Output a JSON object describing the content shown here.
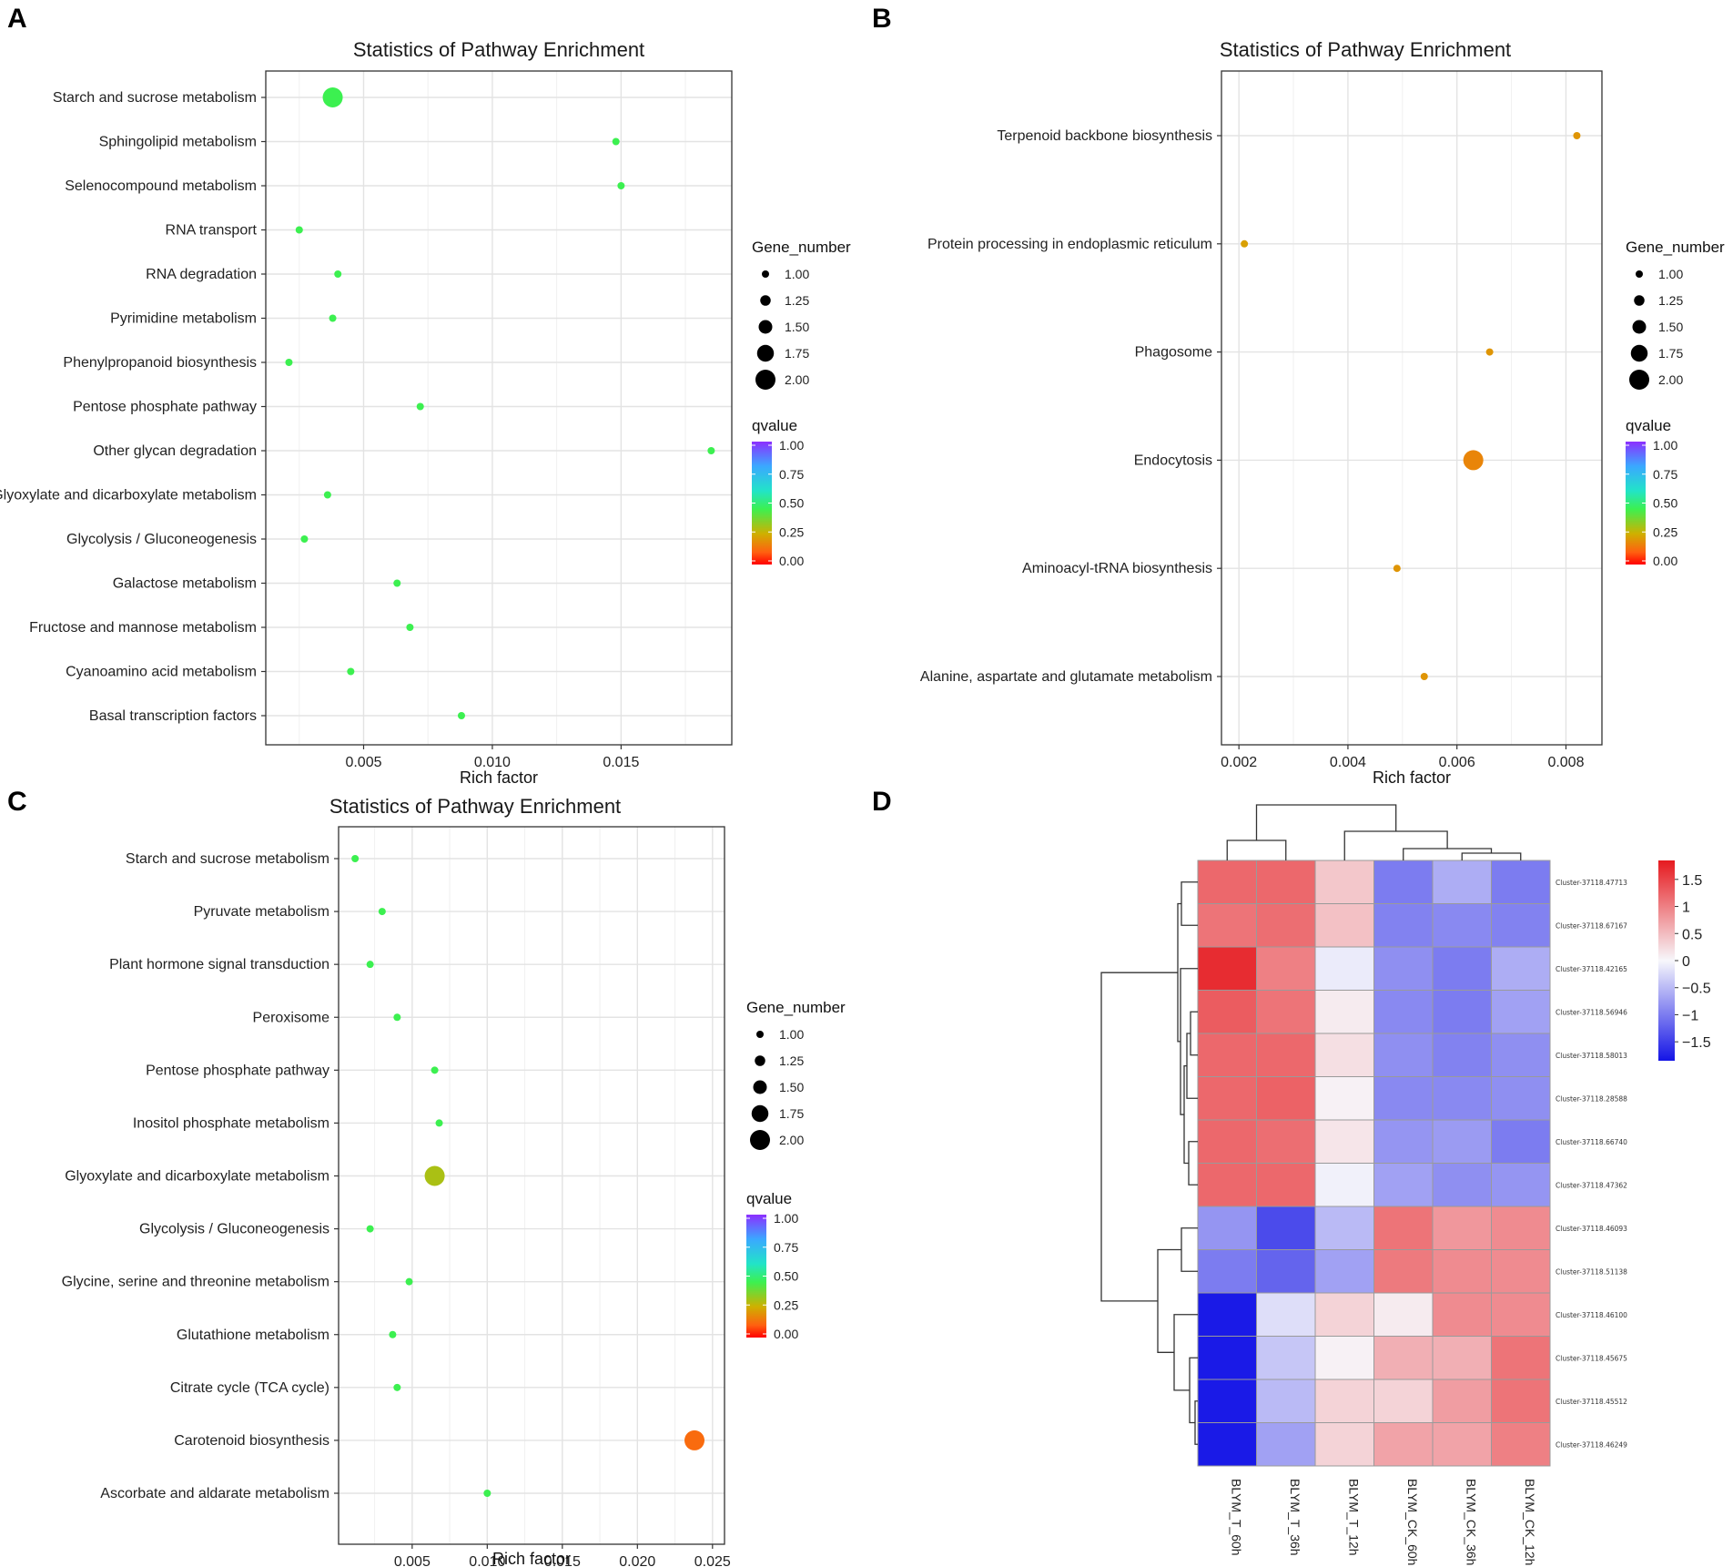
{
  "chart_data": [
    {
      "type": "scatter",
      "panel_label": "A",
      "title": "Statistics of Pathway Enrichment",
      "xlabel": "Rich factor",
      "ylabel": "",
      "xlim": [
        0.0012,
        0.0193
      ],
      "xticks": [
        0.005,
        0.01,
        0.015
      ],
      "xtick_labels": [
        "0.005",
        "0.010",
        "0.015"
      ],
      "grid": true,
      "categories": [
        "Starch and sucrose metabolism",
        "Sphingolipid metabolism",
        "Selenocompound metabolism",
        "RNA transport",
        "RNA degradation",
        "Pyrimidine metabolism",
        "Phenylpropanoid biosynthesis",
        "Pentose phosphate pathway",
        "Other glycan degradation",
        "Glyoxylate and dicarboxylate metabolism",
        "Glycolysis / Gluconeogenesis",
        "Galactose metabolism",
        "Fructose and mannose metabolism",
        "Cyanoamino acid metabolism",
        "Basal transcription factors"
      ],
      "x": [
        0.0038,
        0.0148,
        0.015,
        0.0025,
        0.004,
        0.0038,
        0.0021,
        0.0072,
        0.0185,
        0.0036,
        0.0027,
        0.0063,
        0.0068,
        0.0045,
        0.0088
      ],
      "gene_number": [
        2,
        1,
        1,
        1,
        1,
        1,
        1,
        1,
        1,
        1,
        1,
        1,
        1,
        1,
        1
      ],
      "qvalue": [
        0.45,
        0.45,
        0.45,
        0.45,
        0.45,
        0.45,
        0.45,
        0.45,
        0.45,
        0.45,
        0.45,
        0.45,
        0.45,
        0.45,
        0.45
      ],
      "size_legend": {
        "title": "Gene_number",
        "values": [
          1.0,
          1.25,
          1.5,
          1.75,
          2.0
        ],
        "labels": [
          "1.00",
          "1.25",
          "1.50",
          "1.75",
          "2.00"
        ]
      },
      "color_legend": {
        "title": "qvalue",
        "labels": [
          "1.00",
          "0.75",
          "0.50",
          "0.25",
          "0.00"
        ]
      }
    },
    {
      "type": "scatter",
      "panel_label": "B",
      "title": "Statistics of Pathway Enrichment",
      "xlabel": "Rich factor",
      "ylabel": "",
      "xlim": [
        0.00168,
        0.00866
      ],
      "xticks": [
        0.002,
        0.004,
        0.006,
        0.008
      ],
      "xtick_labels": [
        "0.002",
        "0.004",
        "0.006",
        "0.008"
      ],
      "grid": true,
      "categories": [
        "Terpenoid backbone biosynthesis",
        "Protein processing in endoplasmic reticulum",
        "Phagosome",
        "Endocytosis",
        "Aminoacyl-tRNA biosynthesis",
        "Alanine, aspartate and glutamate metabolism"
      ],
      "x": [
        0.0082,
        0.0021,
        0.0066,
        0.0063,
        0.0049,
        0.0054
      ],
      "gene_number": [
        1,
        1,
        1,
        2,
        1,
        1
      ],
      "qvalue": [
        0.2,
        0.22,
        0.2,
        0.17,
        0.2,
        0.2
      ],
      "size_legend": {
        "title": "Gene_number",
        "values": [
          1.0,
          1.25,
          1.5,
          1.75,
          2.0
        ],
        "labels": [
          "1.00",
          "1.25",
          "1.50",
          "1.75",
          "2.00"
        ]
      },
      "color_legend": {
        "title": "qvalue",
        "labels": [
          "1.00",
          "0.75",
          "0.50",
          "0.25",
          "0.00"
        ]
      }
    },
    {
      "type": "scatter",
      "panel_label": "C",
      "title": "Statistics of Pathway Enrichment",
      "xlabel": "Rich factor",
      "ylabel": "",
      "xlim": [
        0.0001,
        0.0258
      ],
      "xticks": [
        0.005,
        0.01,
        0.015,
        0.02,
        0.025
      ],
      "xtick_labels": [
        "0.005",
        "0.010",
        "0.015",
        "0.020",
        "0.025"
      ],
      "grid": true,
      "categories": [
        "Starch and sucrose metabolism",
        "Pyruvate metabolism",
        "Plant hormone signal transduction",
        "Peroxisome",
        "Pentose phosphate pathway",
        "Inositol phosphate metabolism",
        "Glyoxylate and dicarboxylate metabolism",
        "Glycolysis / Gluconeogenesis",
        "Glycine, serine and threonine metabolism",
        "Glutathione metabolism",
        "Citrate cycle (TCA cycle)",
        "Carotenoid biosynthesis",
        "Ascorbate and aldarate metabolism"
      ],
      "x": [
        0.0012,
        0.003,
        0.0022,
        0.004,
        0.0065,
        0.0068,
        0.0065,
        0.0022,
        0.0048,
        0.0037,
        0.004,
        0.0238,
        0.01
      ],
      "gene_number": [
        1,
        1,
        1,
        1,
        1,
        1,
        2,
        1,
        1,
        1,
        1,
        2,
        1
      ],
      "qvalue": [
        0.45,
        0.45,
        0.45,
        0.45,
        0.45,
        0.45,
        0.3,
        0.45,
        0.45,
        0.45,
        0.45,
        0.12,
        0.45
      ],
      "size_legend": {
        "title": "Gene_number",
        "values": [
          1.0,
          1.25,
          1.5,
          1.75,
          2.0
        ],
        "labels": [
          "1.00",
          "1.25",
          "1.50",
          "1.75",
          "2.00"
        ]
      },
      "color_legend": {
        "title": "qvalue",
        "labels": [
          "1.00",
          "0.75",
          "0.50",
          "0.25",
          "0.00"
        ]
      }
    },
    {
      "type": "heatmap",
      "panel_label": "D",
      "columns": [
        "BLYM_T_60h",
        "BLYM_T_36h",
        "BLYM_T_12h",
        "BLYM_CK_60h",
        "BLYM_CK_36h",
        "BLYM_CK_12h"
      ],
      "rows": [
        "Cluster-37118.47713",
        "Cluster-37118.67167",
        "Cluster-37118.42165",
        "Cluster-37118.56946",
        "Cluster-37118.58013",
        "Cluster-37118.28588",
        "Cluster-37118.66740",
        "Cluster-37118.47362",
        "Cluster-37118.46093",
        "Cluster-37118.51138",
        "Cluster-37118.46100",
        "Cluster-37118.45675",
        "Cluster-37118.45512",
        "Cluster-37118.46249"
      ],
      "values": [
        [
          1.2,
          1.2,
          0.4,
          -1.0,
          -0.6,
          -1.0
        ],
        [
          1.1,
          1.15,
          0.45,
          -0.95,
          -0.9,
          -0.95
        ],
        [
          1.7,
          1.0,
          -0.1,
          -0.85,
          -1.0,
          -0.6
        ],
        [
          1.3,
          1.1,
          0.1,
          -0.9,
          -1.0,
          -0.7
        ],
        [
          1.2,
          1.2,
          0.2,
          -0.85,
          -0.95,
          -0.85
        ],
        [
          1.2,
          1.25,
          0.05,
          -0.9,
          -0.9,
          -0.85
        ],
        [
          1.2,
          1.15,
          0.15,
          -0.8,
          -0.75,
          -1.0
        ],
        [
          1.2,
          1.2,
          -0.05,
          -0.7,
          -0.85,
          -0.8
        ],
        [
          -0.8,
          -1.4,
          -0.5,
          1.1,
          0.8,
          0.9
        ],
        [
          -1.0,
          -1.2,
          -0.7,
          1.05,
          0.9,
          0.9
        ],
        [
          -1.8,
          -0.2,
          0.3,
          0.1,
          0.9,
          0.9
        ],
        [
          -1.8,
          -0.4,
          0.05,
          0.6,
          0.6,
          1.1
        ],
        [
          -1.8,
          -0.5,
          0.3,
          0.3,
          0.75,
          1.1
        ],
        [
          -1.8,
          -0.7,
          0.3,
          0.7,
          0.7,
          1.0
        ]
      ],
      "colorbar_ticks": [
        1.5,
        1,
        0.5,
        0,
        -0.5,
        -1,
        -1.5
      ],
      "colorbar_labels": [
        "1.5",
        "1",
        "0.5",
        "0",
        "−0.5",
        "−1",
        "−1.5"
      ],
      "vmin": -1.85,
      "vmax": 1.85,
      "colors": {
        "low": "#1414e6",
        "mid": "#f7f7fb",
        "high": "#e61a1f"
      }
    }
  ]
}
